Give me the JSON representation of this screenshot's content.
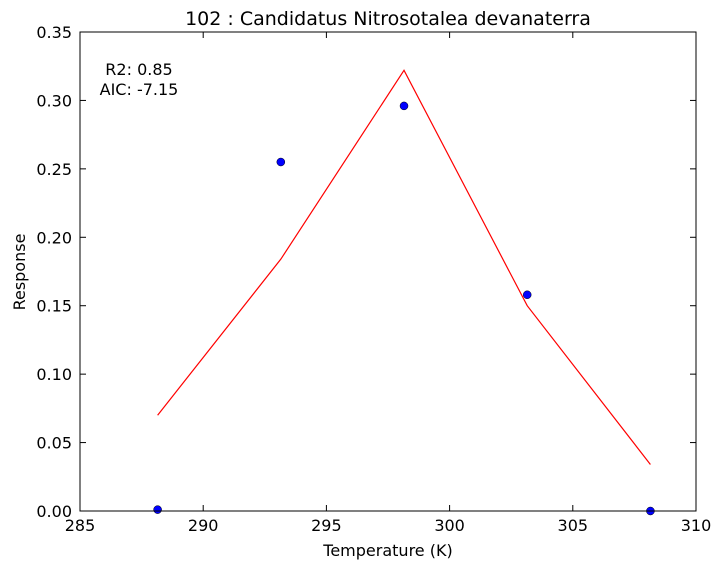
{
  "chart_data": {
    "type": "scatter",
    "title": "102 : Candidatus Nitrosotalea devanaterra",
    "xlabel": "Temperature (K)",
    "ylabel": "Response",
    "xlim": [
      285,
      310
    ],
    "ylim": [
      0,
      0.35
    ],
    "xticks": [
      "285",
      "290",
      "295",
      "300",
      "305",
      "310"
    ],
    "yticks": [
      "0.00",
      "0.05",
      "0.10",
      "0.15",
      "0.20",
      "0.25",
      "0.30",
      "0.35"
    ],
    "grid": false,
    "annotations": [
      "R2: 0.85",
      "AIC: -7.15"
    ],
    "series": [
      {
        "kind": "points",
        "color": "#0000ff",
        "x": [
          288.15,
          293.15,
          298.15,
          303.15,
          308.15
        ],
        "y": [
          0.001,
          0.255,
          0.296,
          0.158,
          0.0
        ]
      },
      {
        "kind": "line",
        "color": "#ff0000",
        "x": [
          288.15,
          293.15,
          298.15,
          303.15,
          308.15
        ],
        "y": [
          0.07,
          0.184,
          0.322,
          0.15,
          0.034
        ]
      }
    ]
  }
}
